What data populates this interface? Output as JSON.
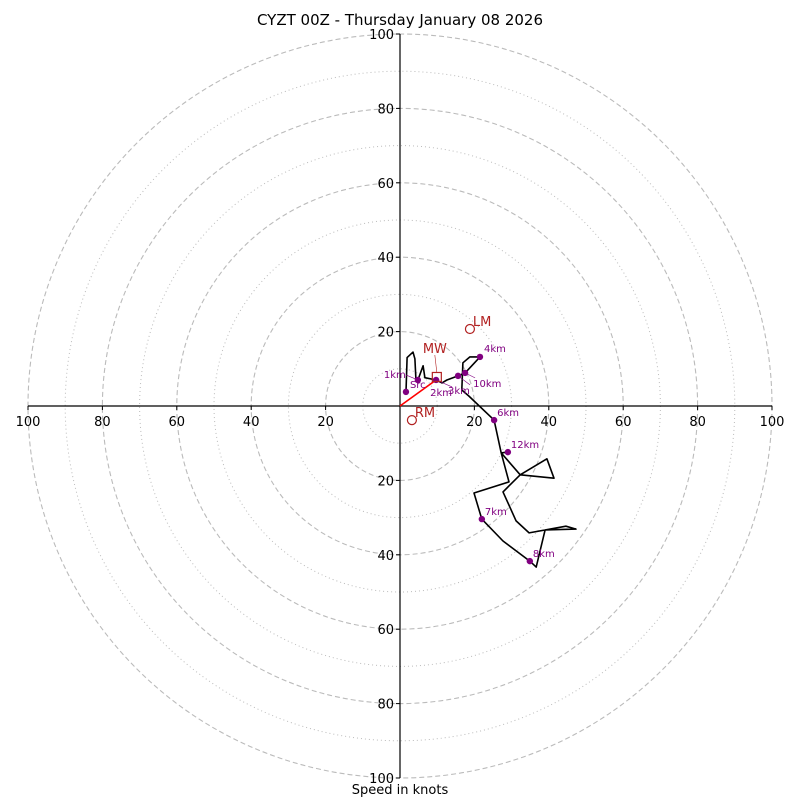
{
  "chart_data": {
    "type": "hodograph",
    "title": "CYZT 00Z - Thursday January 08 2026",
    "xlabel": "Speed in knots",
    "rings": {
      "major": [
        20,
        40,
        60,
        80,
        100
      ],
      "minor": [
        10,
        30,
        50,
        70,
        90
      ],
      "max": 100
    },
    "tick_labels": [
      "20",
      "40",
      "60",
      "80",
      "100"
    ],
    "hodograph_path": [
      [
        1.6,
        3.8
      ],
      [
        1.9,
        13.0
      ],
      [
        3.5,
        14.5
      ],
      [
        4.0,
        12.7
      ],
      [
        4.3,
        6.7
      ],
      [
        4.8,
        7.0
      ],
      [
        6.2,
        10.8
      ],
      [
        6.7,
        7.6
      ],
      [
        9.7,
        7.0
      ],
      [
        11.3,
        6.2
      ],
      [
        12.6,
        7.0
      ],
      [
        15.6,
        8.1
      ],
      [
        17.5,
        8.9
      ],
      [
        19.0,
        10.5
      ],
      [
        21.5,
        13.2
      ],
      [
        18.8,
        13.2
      ],
      [
        16.9,
        11.6
      ],
      [
        16.6,
        4.3
      ],
      [
        18.5,
        2.7
      ],
      [
        25.3,
        -3.8
      ],
      [
        27.2,
        -12.6
      ],
      [
        29.0,
        -12.4
      ],
      [
        27.2,
        -12.6
      ],
      [
        29.3,
        -20.4
      ],
      [
        19.9,
        -23.4
      ],
      [
        22.0,
        -30.4
      ],
      [
        27.7,
        -36.3
      ],
      [
        34.9,
        -41.7
      ],
      [
        36.6,
        -43.3
      ],
      [
        39.0,
        -33.3
      ],
      [
        47.3,
        -33.1
      ],
      [
        44.6,
        -32.3
      ],
      [
        34.7,
        -34.1
      ],
      [
        31.2,
        -30.9
      ],
      [
        27.7,
        -23.1
      ],
      [
        32.3,
        -18.5
      ],
      [
        39.5,
        -14.2
      ],
      [
        41.4,
        -19.4
      ],
      [
        32.3,
        -18.5
      ],
      [
        27.2,
        -12.6
      ]
    ],
    "height_markers": [
      {
        "label": "Src",
        "u": 1.6,
        "v": 3.8
      },
      {
        "label": "1km",
        "u": 4.8,
        "v": 7.0
      },
      {
        "label": "2km",
        "u": 9.7,
        "v": 7.0
      },
      {
        "label": "3km",
        "u": 15.6,
        "v": 8.1
      },
      {
        "label": "10km",
        "u": 17.5,
        "v": 8.9
      },
      {
        "label": "4km",
        "u": 21.5,
        "v": 13.2
      },
      {
        "label": "6km",
        "u": 25.3,
        "v": -3.8
      },
      {
        "label": "12km",
        "u": 29.0,
        "v": -12.4
      },
      {
        "label": "7km",
        "u": 22.0,
        "v": -30.4
      },
      {
        "label": "8km",
        "u": 34.9,
        "v": -41.7
      }
    ],
    "storm_motion": {
      "LM": {
        "label": "LM",
        "u": 18.8,
        "v": 20.7
      },
      "RM": {
        "label": "RM",
        "u": 3.2,
        "v": -3.8
      },
      "MW": {
        "label": "MW",
        "u": 9.9,
        "v": 7.8
      }
    },
    "shear_vector": {
      "from": [
        0,
        0
      ],
      "to": [
        9.7,
        7.0
      ]
    },
    "colors": {
      "path": "#000000",
      "markers": "#800080",
      "storm": "#b22222",
      "shear": "#ff0000",
      "ring": "#bbbbbb"
    }
  }
}
